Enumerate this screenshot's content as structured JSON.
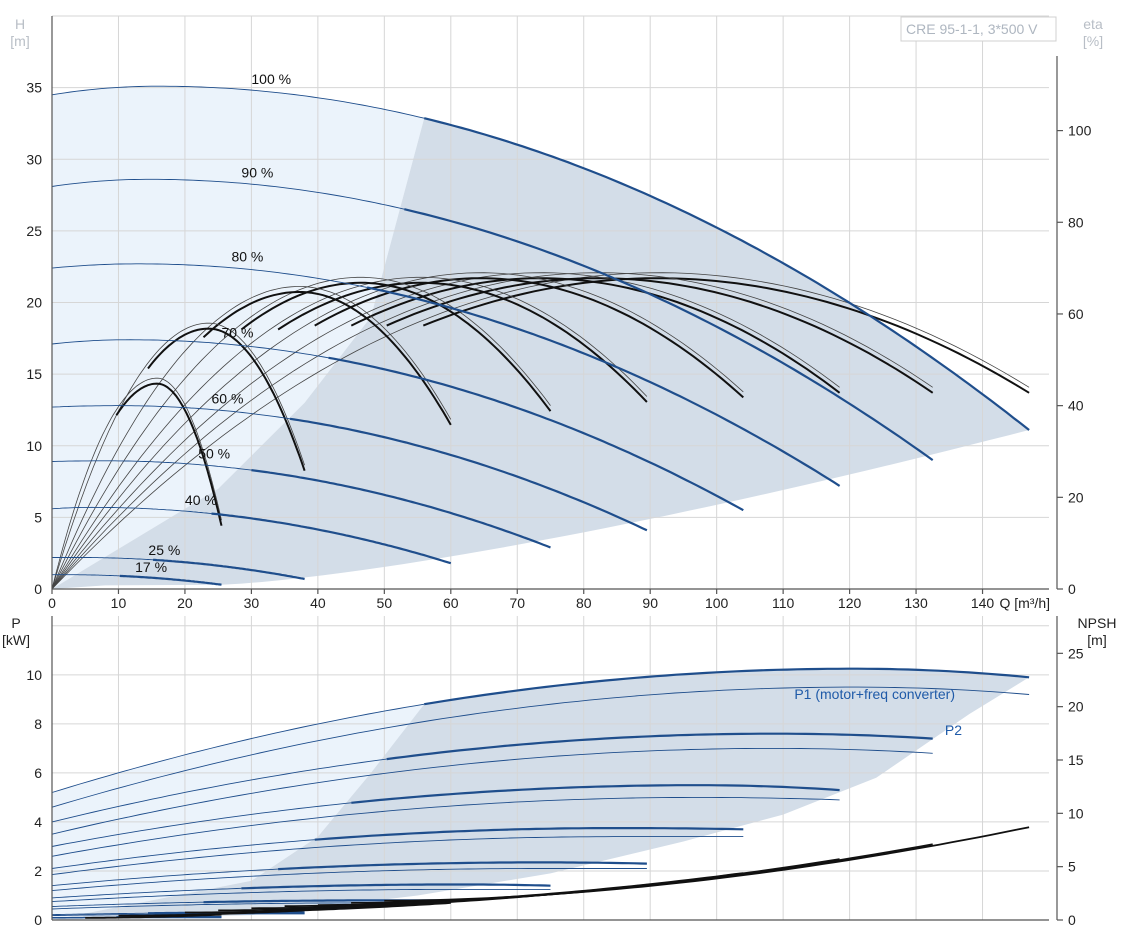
{
  "product_label": "CRE 95-1-1, 3*500 V",
  "chart_data": [
    {
      "type": "line",
      "title": "",
      "xlabel": "Q [m³/h]",
      "ylabel": "H\n[m]",
      "y2label": "eta\n[%]",
      "xlim": [
        0,
        150
      ],
      "ylim": [
        0,
        40
      ],
      "y2lim": [
        0,
        125
      ],
      "x_ticks": [
        0,
        10,
        20,
        30,
        40,
        50,
        60,
        70,
        80,
        90,
        100,
        110,
        120,
        130,
        140
      ],
      "y_ticks": [
        0,
        5,
        10,
        15,
        20,
        25,
        30,
        35
      ],
      "y2_ticks": [
        0,
        20,
        40,
        60,
        80,
        100
      ],
      "grid": true,
      "head_curves": [
        {
          "name": "100 %",
          "shutoff_head": 34.5,
          "max_head": 35.1,
          "q_at_max": 16,
          "q_end": 147,
          "h_end": 11.1
        },
        {
          "name": "90 %",
          "shutoff_head": 28.1,
          "max_head": 28.6,
          "q_at_max": 14.5,
          "q_end": 132.5,
          "h_end": 9.0
        },
        {
          "name": "80 %",
          "shutoff_head": 22.4,
          "max_head": 22.7,
          "q_at_max": 13,
          "q_end": 118.5,
          "h_end": 7.2
        },
        {
          "name": "70 %",
          "shutoff_head": 17.1,
          "max_head": 17.4,
          "q_at_max": 11.5,
          "q_end": 104,
          "h_end": 5.5
        },
        {
          "name": "60 %",
          "shutoff_head": 12.7,
          "max_head": 12.8,
          "q_at_max": 10,
          "q_end": 89.5,
          "h_end": 4.1
        },
        {
          "name": "50 %",
          "shutoff_head": 8.9,
          "max_head": 8.95,
          "q_at_max": 8,
          "q_end": 75,
          "h_end": 2.9
        },
        {
          "name": "40 %",
          "shutoff_head": 5.6,
          "max_head": 5.7,
          "q_at_max": 6,
          "q_end": 60,
          "h_end": 1.8
        },
        {
          "name": "25 %",
          "shutoff_head": 2.2,
          "max_head": 2.2,
          "q_at_max": 4,
          "q_end": 38,
          "h_end": 0.7
        },
        {
          "name": "17 %",
          "shutoff_head": 1.0,
          "max_head": 1.0,
          "q_at_max": 2,
          "q_end": 25.5,
          "h_end": 0.3
        }
      ],
      "efficiency_curves": [
        {
          "q_end": 147,
          "eta_peak": 69,
          "eta_end": 44
        },
        {
          "q_end": 132.5,
          "eta_peak": 69,
          "eta_end": 44
        },
        {
          "q_end": 118.5,
          "eta_peak": 69,
          "eta_end": 44
        },
        {
          "q_end": 104,
          "eta_peak": 69,
          "eta_end": 43
        },
        {
          "q_end": 89.5,
          "eta_peak": 68,
          "eta_end": 42
        },
        {
          "q_end": 75,
          "eta_peak": 68,
          "eta_end": 40
        },
        {
          "q_end": 60,
          "eta_peak": 66,
          "eta_end": 37
        },
        {
          "q_end": 38,
          "eta_peak": 58,
          "eta_end": 27
        },
        {
          "q_end": 25.5,
          "eta_peak": 46,
          "eta_end": 15
        }
      ]
    },
    {
      "type": "line",
      "title": "",
      "xlabel": "",
      "ylabel": "P\n[kW]",
      "y2label": "NPSH\n[m]",
      "xlim": [
        0,
        150
      ],
      "ylim": [
        0,
        12.4
      ],
      "y2lim": [
        0,
        28.5
      ],
      "y_ticks": [
        0,
        2,
        4,
        6,
        8,
        10
      ],
      "y2_ticks": [
        0,
        5,
        10,
        15,
        20,
        25
      ],
      "grid": true,
      "series_labels": [
        "P1 (motor+freq converter)",
        "P2"
      ],
      "power_curves": [
        {
          "q_end": 147,
          "p1_start": 5.2,
          "p1_peak": 10.25,
          "p1_end": 9.9,
          "p2_start": 4.6,
          "p2_peak": 9.5,
          "p2_end": 9.2
        },
        {
          "q_end": 132.5,
          "p1_start": 4.0,
          "p1_peak": 7.6,
          "p1_end": 7.4,
          "p2_start": 3.5,
          "p2_peak": 7.0,
          "p2_end": 6.8
        },
        {
          "q_end": 118.5,
          "p1_start": 3.0,
          "p1_peak": 5.5,
          "p1_end": 5.3,
          "p2_start": 2.6,
          "p2_peak": 5.0,
          "p2_end": 4.9
        },
        {
          "q_end": 104,
          "p1_start": 2.1,
          "p1_peak": 3.75,
          "p1_end": 3.7,
          "p2_start": 1.85,
          "p2_peak": 3.4,
          "p2_end": 3.4
        },
        {
          "q_end": 89.5,
          "p1_start": 1.4,
          "p1_peak": 2.35,
          "p1_end": 2.3,
          "p2_start": 1.2,
          "p2_peak": 2.1,
          "p2_end": 2.1
        },
        {
          "q_end": 75,
          "p1_start": 0.9,
          "p1_peak": 1.45,
          "p1_end": 1.4,
          "p2_start": 0.75,
          "p2_peak": 1.25,
          "p2_end": 1.25
        },
        {
          "q_end": 60,
          "p1_start": 0.55,
          "p1_peak": 0.8,
          "p1_end": 0.8,
          "p2_start": 0.45,
          "p2_peak": 0.7,
          "p2_end": 0.7
        },
        {
          "q_end": 38,
          "p1_start": 0.22,
          "p1_peak": 0.3,
          "p1_end": 0.3,
          "p2_start": 0.18,
          "p2_peak": 0.25,
          "p2_end": 0.25
        },
        {
          "q_end": 25.5,
          "p1_start": 0.1,
          "p1_peak": 0.12,
          "p1_end": 0.12,
          "p2_start": 0.08,
          "p2_peak": 0.1,
          "p2_end": 0.1
        }
      ],
      "npsh_curves": [
        {
          "q_start": 50,
          "q_end": 147,
          "npsh_start": 1.8,
          "npsh_end": 8.7
        },
        {
          "q_start": 45,
          "q_end": 132.5,
          "npsh_start": 1.6,
          "npsh_end": 7.1
        },
        {
          "q_start": 40,
          "q_end": 118.5,
          "npsh_start": 1.4,
          "npsh_end": 5.7
        },
        {
          "q_start": 35,
          "q_end": 104,
          "npsh_start": 1.3,
          "npsh_end": 4.4
        },
        {
          "q_start": 30,
          "q_end": 89.5,
          "npsh_start": 1.1,
          "npsh_end": 3.3
        },
        {
          "q_start": 25,
          "q_end": 75,
          "npsh_start": 0.9,
          "npsh_end": 2.4
        },
        {
          "q_start": 20,
          "q_end": 60,
          "npsh_start": 0.7,
          "npsh_end": 1.6
        },
        {
          "q_start": 10,
          "q_end": 38,
          "npsh_start": 0.4,
          "npsh_end": 0.9
        },
        {
          "q_start": 5,
          "q_end": 25.5,
          "npsh_start": 0.2,
          "npsh_end": 0.5
        }
      ]
    }
  ],
  "colors": {
    "head_line": "#1f4e8c",
    "eta_line": "#111111",
    "eta_thin": "#444444",
    "envelope_fill": "#d3dde8",
    "light_fill": "#ebf3fb",
    "grid": "#d6d6d6",
    "axis": "#555555"
  }
}
